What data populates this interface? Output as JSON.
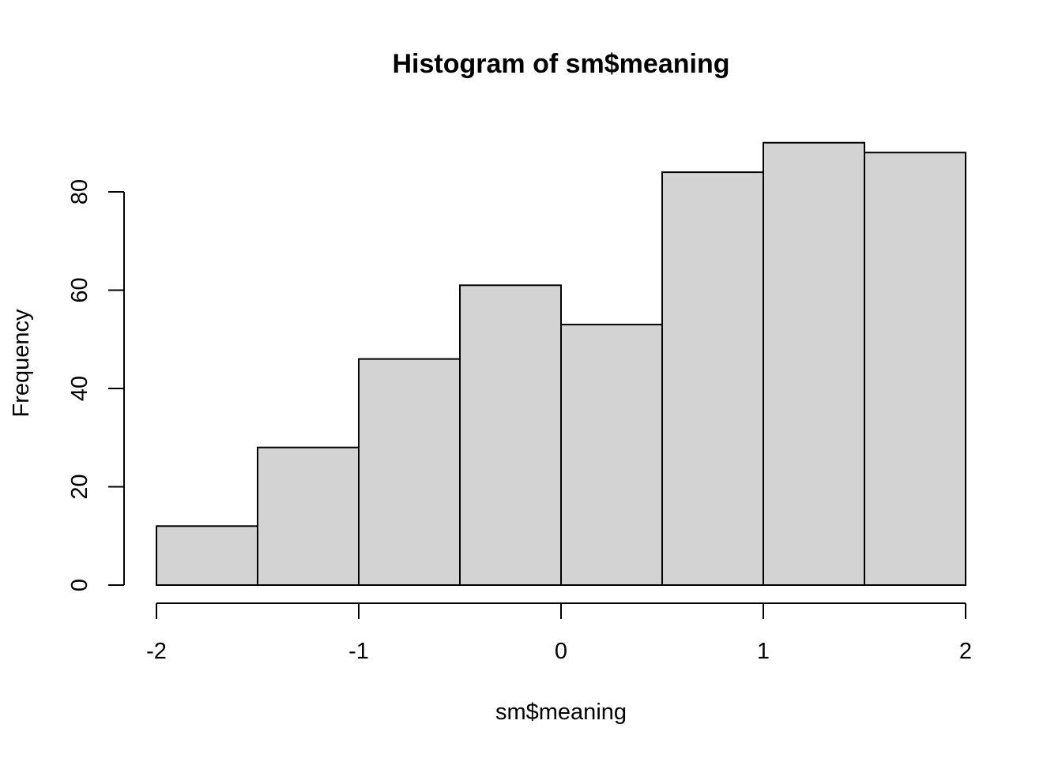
{
  "chart_data": {
    "type": "bar",
    "title": "Histogram of sm$meaning",
    "xlabel": "sm$meaning",
    "ylabel": "Frequency",
    "bins": [
      {
        "start": -2.0,
        "end": -1.5,
        "count": 12
      },
      {
        "start": -1.5,
        "end": -1.0,
        "count": 28
      },
      {
        "start": -1.0,
        "end": -0.5,
        "count": 46
      },
      {
        "start": -0.5,
        "end": 0.0,
        "count": 61
      },
      {
        "start": 0.0,
        "end": 0.5,
        "count": 53
      },
      {
        "start": 0.5,
        "end": 1.0,
        "count": 84
      },
      {
        "start": 1.0,
        "end": 1.5,
        "count": 90
      },
      {
        "start": 1.5,
        "end": 2.0,
        "count": 88
      }
    ],
    "xlim": [
      -2,
      2
    ],
    "ylim": [
      0,
      90
    ],
    "x_ticks": [
      -2,
      -1,
      0,
      1,
      2
    ],
    "x_tick_labels": [
      "-2",
      "-1",
      "0",
      "1",
      "2"
    ],
    "y_ticks": [
      0,
      20,
      40,
      60,
      80
    ],
    "y_tick_labels": [
      "0",
      "20",
      "40",
      "60",
      "80"
    ],
    "grid": false,
    "bar_color": "#d3d3d3",
    "edge_color": "#000000"
  }
}
